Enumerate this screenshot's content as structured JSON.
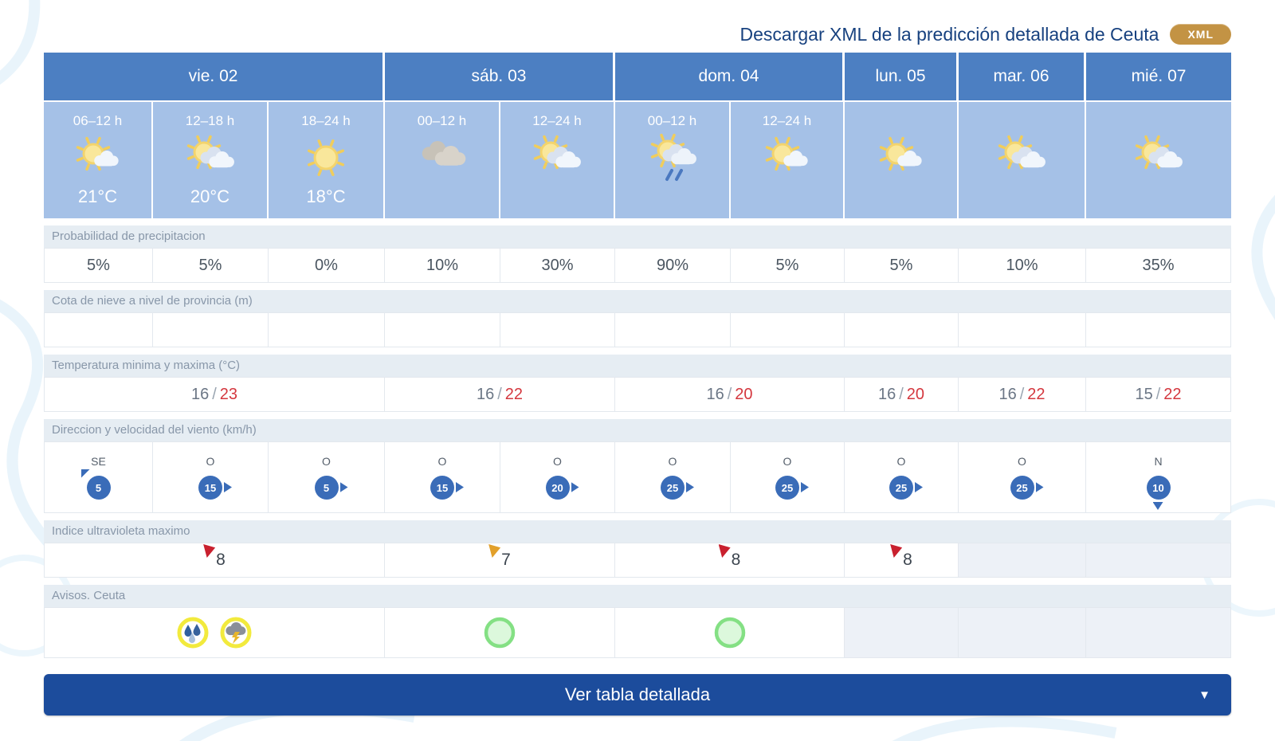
{
  "header": {
    "download_label": "Descargar XML de la predicción detallada de Ceuta",
    "xml_button": "XML"
  },
  "colors": {
    "day_header_blue": "#4c7fc2",
    "period_blue": "#a5c1e7",
    "label_row_bg": "#e6edf3",
    "title_blue": "#17417f",
    "xml_gold": "#c39344",
    "footer_blue": "#1c4c9c",
    "wind_circle_blue": "#3a6cb8",
    "temp_min_gray": "#6b7685",
    "temp_max_red": "#d4373e",
    "uv_flag_red": "#c9202e",
    "uv_flag_orange": "#e2a02a",
    "warning_ring_yellow": "#f2ea3d",
    "ok_circle_green": "#84e084",
    "empty_cell_gray": "#edf1f7"
  },
  "days": [
    {
      "label": "vie. 02",
      "span": 3
    },
    {
      "label": "sáb. 03",
      "span": 2
    },
    {
      "label": "dom. 04",
      "span": 2
    },
    {
      "label": "lun. 05",
      "span": 1
    },
    {
      "label": "mar. 06",
      "span": 1
    },
    {
      "label": "mié. 07",
      "span": 1
    }
  ],
  "periods": [
    {
      "time": "06–12 h",
      "icon": "sun-cloud",
      "temp": "21°C"
    },
    {
      "time": "12–18 h",
      "icon": "sun-clouds",
      "temp": "20°C"
    },
    {
      "time": "18–24 h",
      "icon": "sun",
      "temp": "18°C"
    },
    {
      "time": "00–12 h",
      "icon": "clouds",
      "temp": ""
    },
    {
      "time": "12–24 h",
      "icon": "sun-clouds",
      "temp": ""
    },
    {
      "time": "00–12 h",
      "icon": "sun-clouds-rain",
      "temp": ""
    },
    {
      "time": "12–24 h",
      "icon": "sun-cloud",
      "temp": ""
    },
    {
      "time": "",
      "icon": "sun-cloud",
      "temp": ""
    },
    {
      "time": "",
      "icon": "sun-clouds",
      "temp": ""
    },
    {
      "time": "",
      "icon": "sun-clouds",
      "temp": ""
    }
  ],
  "section_order": [
    "precipitation",
    "snow",
    "temperature",
    "wind",
    "uv",
    "warnings"
  ],
  "sections": {
    "precipitation": {
      "label": "Probabilidad de precipitacion",
      "values": [
        "5%",
        "5%",
        "0%",
        "10%",
        "30%",
        "90%",
        "5%",
        "5%",
        "10%",
        "35%"
      ]
    },
    "snow": {
      "label": "Cota de nieve a nivel de provincia (m)",
      "values": [
        "",
        "",
        "",
        "",
        "",
        "",
        "",
        "",
        "",
        ""
      ]
    },
    "temperature": {
      "label": "Temperatura minima y maxima (°C)",
      "values": [
        {
          "min": "16",
          "max": "23"
        },
        {
          "min": "16",
          "max": "22"
        },
        {
          "min": "16",
          "max": "20"
        },
        {
          "min": "16",
          "max": "20"
        },
        {
          "min": "16",
          "max": "22"
        },
        {
          "min": "15",
          "max": "22"
        }
      ]
    },
    "wind": {
      "label": "Direccion y velocidad del viento (km/h)",
      "values": [
        {
          "dir": "SE",
          "speed": "5",
          "arrow": "nw"
        },
        {
          "dir": "O",
          "speed": "15",
          "arrow": "e"
        },
        {
          "dir": "O",
          "speed": "5",
          "arrow": "e"
        },
        {
          "dir": "O",
          "speed": "15",
          "arrow": "e"
        },
        {
          "dir": "O",
          "speed": "20",
          "arrow": "e"
        },
        {
          "dir": "O",
          "speed": "25",
          "arrow": "e"
        },
        {
          "dir": "O",
          "speed": "25",
          "arrow": "e"
        },
        {
          "dir": "O",
          "speed": "25",
          "arrow": "e"
        },
        {
          "dir": "O",
          "speed": "25",
          "arrow": "e"
        },
        {
          "dir": "N",
          "speed": "10",
          "arrow": "s"
        }
      ]
    },
    "uv": {
      "label": "Indice ultravioleta maximo",
      "values": [
        {
          "value": "8",
          "flag": "red"
        },
        {
          "value": "7",
          "flag": "orange"
        },
        {
          "value": "8",
          "flag": "red"
        },
        {
          "value": "8",
          "flag": "red"
        },
        {
          "empty": true
        },
        {
          "empty": true
        }
      ]
    },
    "warnings": {
      "label": "Avisos. Ceuta",
      "values": [
        {
          "icons": [
            "rain-warning",
            "storm-warning"
          ]
        },
        {
          "icons": [
            "green-circle"
          ]
        },
        {
          "icons": [
            "green-circle"
          ]
        },
        {
          "empty": true
        },
        {
          "empty": true
        },
        {
          "empty": true
        }
      ]
    }
  },
  "footer": {
    "button_label": "Ver tabla detallada"
  }
}
